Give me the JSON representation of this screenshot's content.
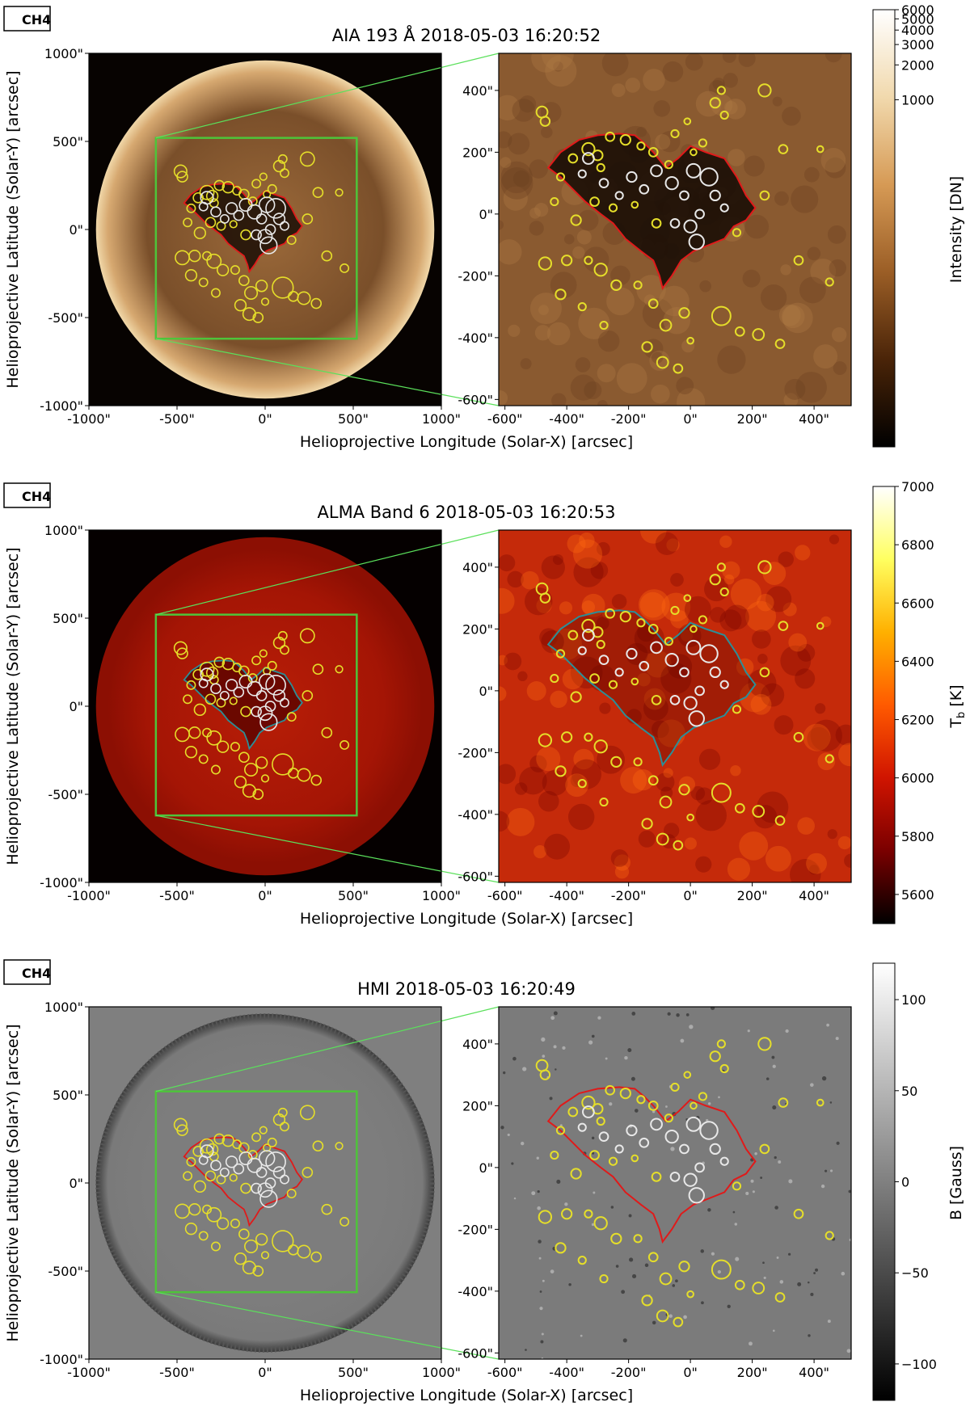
{
  "panels": [
    {
      "id": "aia",
      "tag": "CH4",
      "title": "AIA 193 Å 2018-05-03 16:20:52",
      "colors": {
        "bg": "#070301",
        "disk_center": "#9c6a3a",
        "disk_mid": "#7a4f2a",
        "disk_edge": "#d6a870",
        "limb": "#f0d7a8",
        "zoom_bg": "#8a5a30",
        "hole": "#1a0d05",
        "contour": "#e01a1a",
        "overlay_circle": "#e5de2a"
      },
      "colorbar": {
        "label": "Intensity [DN]",
        "ticks": [
          "6000",
          "5000",
          "4000",
          "3000",
          "2000",
          "1000"
        ],
        "tick_values": [
          6000,
          5000,
          4000,
          3000,
          2000,
          1000
        ],
        "range": [
          1,
          6000
        ],
        "scale": "log",
        "stops": [
          "#ffffff",
          "#f1d9ad",
          "#d69a55",
          "#9b5e26",
          "#4a2408",
          "#000000"
        ]
      }
    },
    {
      "id": "alma",
      "tag": "CH4",
      "title": "ALMA Band 6 2018-05-03 16:20:53",
      "colors": {
        "bg": "#050000",
        "disk_center": "#b81e07",
        "disk_mid": "#a41505",
        "disk_edge": "#8c0f03",
        "limb": "#8c0f03",
        "zoom_bg": "#c52a0a",
        "hole": "#5e0500",
        "contour": "#2a8f98",
        "overlay_circle": "#e5de2a"
      },
      "colorbar": {
        "label": "T_b [K]",
        "ticks": [
          "7000",
          "6800",
          "6600",
          "6400",
          "6200",
          "6000",
          "5800",
          "5600"
        ],
        "tick_values": [
          7000,
          6800,
          6600,
          6400,
          6200,
          6000,
          5800,
          5600
        ],
        "range": [
          5500,
          7000
        ],
        "scale": "linear",
        "stops": [
          "#ffffff",
          "#ffff60",
          "#ffb000",
          "#ff5a00",
          "#d01400",
          "#7a0000",
          "#000000"
        ]
      }
    },
    {
      "id": "hmi",
      "tag": "CH4",
      "title": "HMI 2018-05-03 16:20:49",
      "colors": {
        "bg": "#7f7f7f",
        "disk_center": "#7d7d7d",
        "disk_mid": "#7d7d7d",
        "disk_edge": "#7a7a7a",
        "limb": "#3a3a3a",
        "zoom_bg": "#7b7b7b",
        "hole": "#7b7b7b",
        "contour": "#e01a1a",
        "overlay_circle": "#e5de2a"
      },
      "colorbar": {
        "label": "B [Gauss]",
        "ticks": [
          "100",
          "50",
          "0",
          "−50",
          "−100"
        ],
        "tick_values": [
          100,
          50,
          0,
          -50,
          -100
        ],
        "range": [
          -120,
          120
        ],
        "scale": "linear",
        "stops": [
          "#ffffff",
          "#808080",
          "#000000"
        ]
      }
    }
  ],
  "axes": {
    "full_disk": {
      "xlabel": "Helioprojective Longitude (Solar-X) [arcsec]",
      "ylabel": "Helioprojective Latitude (Solar-Y) [arcsec]",
      "range": [
        -1000,
        1000
      ],
      "ticks": [
        -1000,
        -500,
        0,
        500,
        1000
      ],
      "tick_labels": [
        "-1000\"",
        "-500\"",
        "0\"",
        "500\"",
        "1000\""
      ]
    },
    "zoom": {
      "xrange": [
        -620,
        520
      ],
      "yrange": [
        -620,
        520
      ],
      "xticks": [
        -600,
        -400,
        -200,
        0,
        200,
        400
      ],
      "xtick_labels": [
        "-600\"",
        "-400\"",
        "-200\"",
        "0\"",
        "200\"",
        "400\""
      ],
      "yticks": [
        -600,
        -400,
        -200,
        0,
        200,
        400
      ],
      "ytick_labels": [
        "-600\"",
        "-400\"",
        "-200\"",
        "0\"",
        "200\"",
        "400\""
      ]
    },
    "zoom_box_color": "#4ec43a",
    "connector_color": "#5be05b"
  },
  "chart_data": {
    "type": "scatter",
    "coronal_hole_contour": [
      [
        -420,
        200
      ],
      [
        -360,
        240
      ],
      [
        -300,
        255
      ],
      [
        -230,
        260
      ],
      [
        -180,
        255
      ],
      [
        -150,
        230
      ],
      [
        -120,
        200
      ],
      [
        -80,
        150
      ],
      [
        -40,
        180
      ],
      [
        0,
        220
      ],
      [
        50,
        200
      ],
      [
        110,
        180
      ],
      [
        150,
        120
      ],
      [
        180,
        60
      ],
      [
        210,
        20
      ],
      [
        180,
        -20
      ],
      [
        140,
        -40
      ],
      [
        110,
        -80
      ],
      [
        60,
        -100
      ],
      [
        10,
        -120
      ],
      [
        -30,
        -150
      ],
      [
        -60,
        -200
      ],
      [
        -90,
        -240
      ],
      [
        -100,
        -200
      ],
      [
        -120,
        -150
      ],
      [
        -160,
        -120
      ],
      [
        -210,
        -80
      ],
      [
        -250,
        -30
      ],
      [
        -290,
        0
      ],
      [
        -340,
        40
      ],
      [
        -380,
        80
      ],
      [
        -420,
        120
      ],
      [
        -460,
        150
      ]
    ],
    "yellow_circles": [
      [
        -480,
        330,
        18
      ],
      [
        -470,
        300,
        15
      ],
      [
        -420,
        120,
        12
      ],
      [
        -380,
        180,
        14
      ],
      [
        -330,
        210,
        20
      ],
      [
        -300,
        190,
        16
      ],
      [
        -290,
        150,
        12
      ],
      [
        -260,
        250,
        14
      ],
      [
        -210,
        240,
        16
      ],
      [
        -160,
        220,
        12
      ],
      [
        -120,
        200,
        14
      ],
      [
        -70,
        160,
        12
      ],
      [
        10,
        200,
        10
      ],
      [
        40,
        230,
        12
      ],
      [
        100,
        400,
        12
      ],
      [
        80,
        360,
        16
      ],
      [
        110,
        320,
        12
      ],
      [
        240,
        400,
        20
      ],
      [
        300,
        210,
        14
      ],
      [
        420,
        210,
        10
      ],
      [
        -440,
        40,
        12
      ],
      [
        -370,
        -20,
        16
      ],
      [
        -310,
        40,
        14
      ],
      [
        -250,
        20,
        12
      ],
      [
        -180,
        30,
        10
      ],
      [
        -110,
        -30,
        14
      ],
      [
        -470,
        -160,
        20
      ],
      [
        -400,
        -150,
        16
      ],
      [
        -330,
        -150,
        12
      ],
      [
        -290,
        -180,
        20
      ],
      [
        -240,
        -230,
        16
      ],
      [
        -170,
        -230,
        12
      ],
      [
        -120,
        -290,
        14
      ],
      [
        -80,
        -360,
        18
      ],
      [
        -20,
        -320,
        16
      ],
      [
        100,
        -330,
        30
      ],
      [
        160,
        -380,
        14
      ],
      [
        220,
        -390,
        18
      ],
      [
        290,
        -420,
        14
      ],
      [
        -420,
        -260,
        16
      ],
      [
        -350,
        -300,
        12
      ],
      [
        -280,
        -360,
        12
      ],
      [
        -140,
        -430,
        16
      ],
      [
        -90,
        -480,
        18
      ],
      [
        -40,
        -500,
        14
      ],
      [
        0,
        -410,
        10
      ],
      [
        350,
        -150,
        14
      ],
      [
        450,
        -220,
        12
      ],
      [
        150,
        -60,
        12
      ],
      [
        240,
        60,
        14
      ],
      [
        -10,
        300,
        10
      ],
      [
        -50,
        260,
        12
      ]
    ],
    "white_circles": [
      [
        -330,
        180,
        18
      ],
      [
        -280,
        100,
        14
      ],
      [
        -230,
        60,
        12
      ],
      [
        -190,
        120,
        16
      ],
      [
        -150,
        80,
        14
      ],
      [
        -110,
        140,
        18
      ],
      [
        -60,
        100,
        20
      ],
      [
        -20,
        60,
        14
      ],
      [
        10,
        140,
        22
      ],
      [
        60,
        120,
        28
      ],
      [
        80,
        60,
        16
      ],
      [
        30,
        0,
        14
      ],
      [
        0,
        -40,
        20
      ],
      [
        20,
        -90,
        24
      ],
      [
        -50,
        -30,
        14
      ],
      [
        110,
        20,
        12
      ],
      [
        -350,
        130,
        12
      ]
    ]
  }
}
